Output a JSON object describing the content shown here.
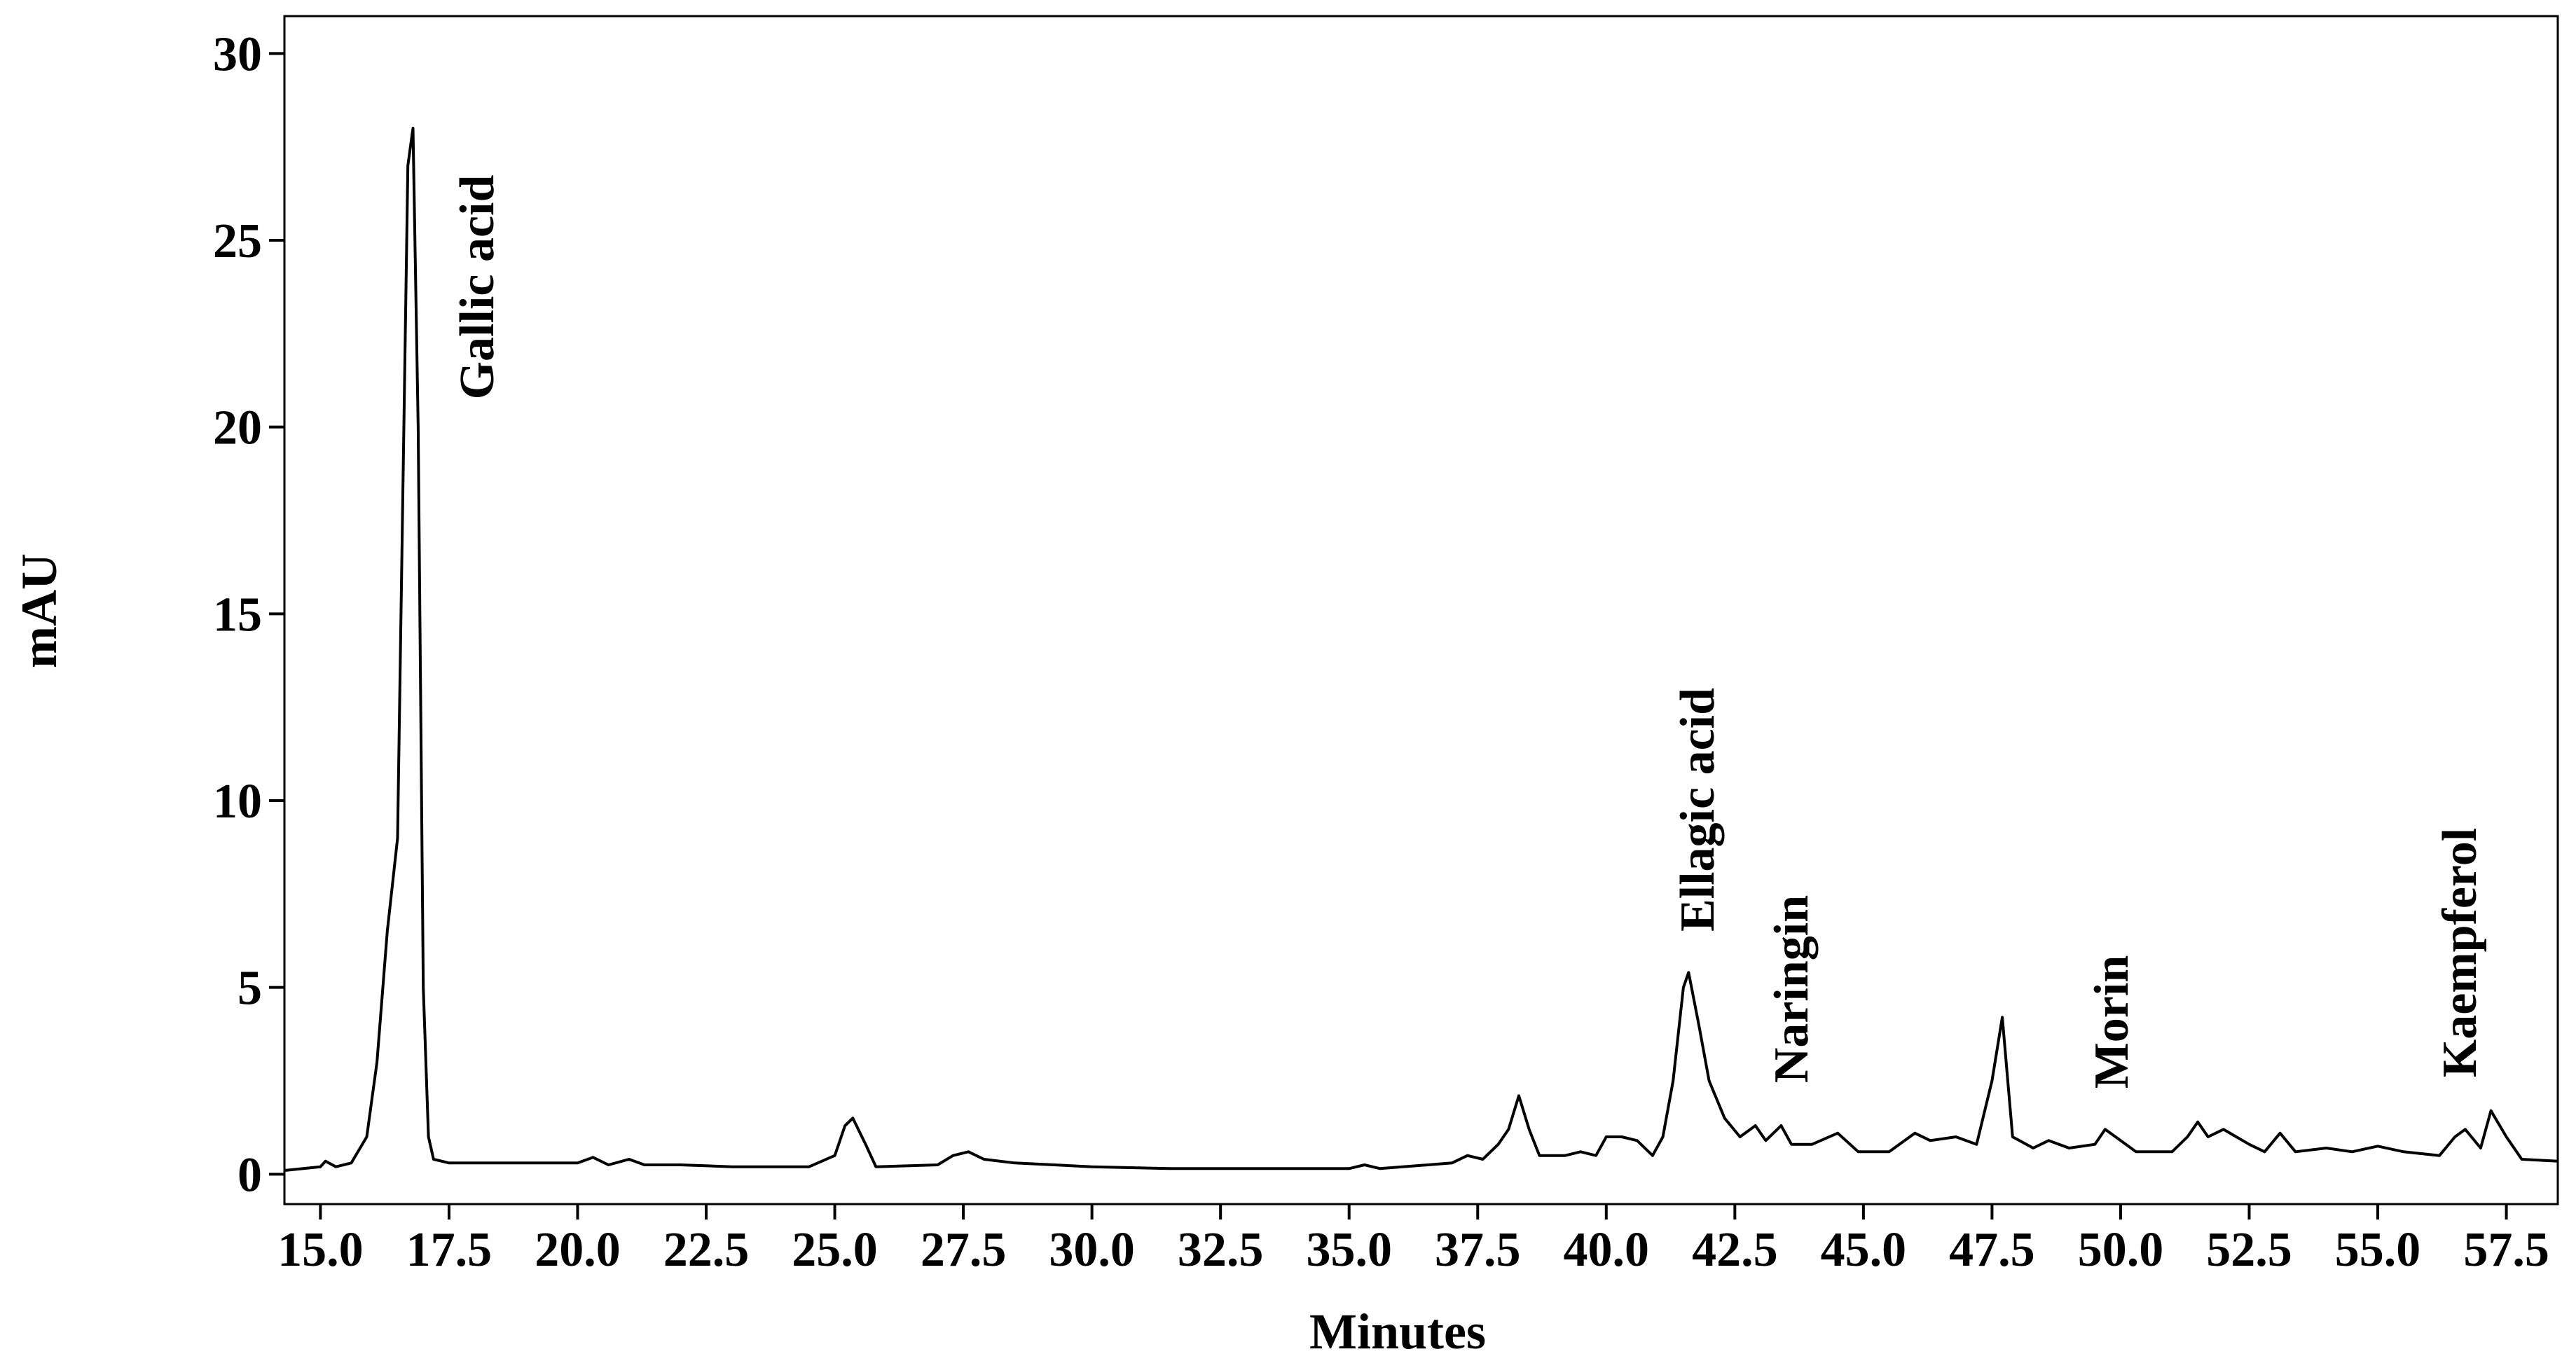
{
  "chart_data": {
    "type": "line",
    "x_label": "Minutes",
    "y_label": "mAU",
    "xlim": [
      14.3,
      58.5
    ],
    "ylim": [
      -0.8,
      31
    ],
    "xticks": [
      {
        "value": 15,
        "label": "15.0"
      },
      {
        "value": 17.5,
        "label": "17.5"
      },
      {
        "value": 20,
        "label": "20.0"
      },
      {
        "value": 22.5,
        "label": "22.5"
      },
      {
        "value": 25,
        "label": "25.0"
      },
      {
        "value": 27.5,
        "label": "27.5"
      },
      {
        "value": 30,
        "label": "30.0"
      },
      {
        "value": 32.5,
        "label": "32.5"
      },
      {
        "value": 35,
        "label": "35.0"
      },
      {
        "value": 37.5,
        "label": "37.5"
      },
      {
        "value": 40,
        "label": "40.0"
      },
      {
        "value": 42.5,
        "label": "42.5"
      },
      {
        "value": 45,
        "label": "45.0"
      },
      {
        "value": 47.5,
        "label": "47.5"
      },
      {
        "value": 50,
        "label": "50.0"
      },
      {
        "value": 52.5,
        "label": "52.5"
      },
      {
        "value": 55,
        "label": "55.0"
      },
      {
        "value": 57.5,
        "label": "57.5"
      }
    ],
    "yticks": [
      0,
      5,
      10,
      15,
      20,
      25,
      30
    ],
    "annotations": [
      "Gallic acid",
      "Ellagic acid",
      "Naringin",
      "Morin",
      "Kaempferol"
    ],
    "series": [
      {
        "color": "#000000",
        "x": [
          14.3,
          15.0,
          15.1,
          15.3,
          15.6,
          15.9,
          16.1,
          16.3,
          16.5,
          16.7,
          16.8,
          16.9,
          17.0,
          17.1,
          17.2,
          17.5,
          18.5,
          20.0,
          20.3,
          20.6,
          21.0,
          21.3,
          22.0,
          23.0,
          24.5,
          25.0,
          25.2,
          25.35,
          25.6,
          25.8,
          27.0,
          27.3,
          27.6,
          27.9,
          28.5,
          30.0,
          31.5,
          33.0,
          35.0,
          35.3,
          35.6,
          37.0,
          37.3,
          37.6,
          37.9,
          38.1,
          38.3,
          38.5,
          38.7,
          39.2,
          39.5,
          39.8,
          40.0,
          40.3,
          40.6,
          40.9,
          41.1,
          41.3,
          41.5,
          41.6,
          41.8,
          42.0,
          42.3,
          42.6,
          42.9,
          43.1,
          43.4,
          43.6,
          44.0,
          44.5,
          44.9,
          45.5,
          46.0,
          46.3,
          46.8,
          47.2,
          47.5,
          47.7,
          47.9,
          48.3,
          48.6,
          49.0,
          49.5,
          49.7,
          50.0,
          50.3,
          51.0,
          51.3,
          51.5,
          51.7,
          52.0,
          52.5,
          52.8,
          53.1,
          53.4,
          54.0,
          54.5,
          55.0,
          55.5,
          56.2,
          56.5,
          56.7,
          57.0,
          57.2,
          57.5,
          57.8,
          58.5
        ],
        "values": [
          0.1,
          0.2,
          0.35,
          0.2,
          0.3,
          1.0,
          3.0,
          6.5,
          9,
          27,
          28.0,
          20,
          5,
          1,
          0.4,
          0.3,
          0.3,
          0.3,
          0.45,
          0.25,
          0.4,
          0.25,
          0.25,
          0.2,
          0.2,
          0.5,
          1.3,
          1.5,
          0.8,
          0.2,
          0.25,
          0.5,
          0.6,
          0.4,
          0.3,
          0.2,
          0.15,
          0.15,
          0.15,
          0.25,
          0.15,
          0.3,
          0.5,
          0.4,
          0.8,
          1.2,
          2.1,
          1.2,
          0.5,
          0.5,
          0.6,
          0.5,
          1.0,
          1.0,
          0.9,
          0.5,
          1.0,
          2.5,
          5.0,
          5.4,
          4.0,
          2.5,
          1.5,
          1.0,
          1.3,
          0.9,
          1.3,
          0.8,
          0.8,
          1.1,
          0.6,
          0.6,
          1.1,
          0.9,
          1.0,
          0.8,
          2.5,
          4.2,
          1.0,
          0.7,
          0.9,
          0.7,
          0.8,
          1.2,
          0.9,
          0.6,
          0.6,
          1.0,
          1.4,
          1.0,
          1.2,
          0.8,
          0.6,
          1.1,
          0.6,
          0.7,
          0.6,
          0.75,
          0.6,
          0.5,
          1.0,
          1.2,
          0.7,
          1.7,
          1.0,
          0.4,
          0.35
        ]
      }
    ]
  }
}
